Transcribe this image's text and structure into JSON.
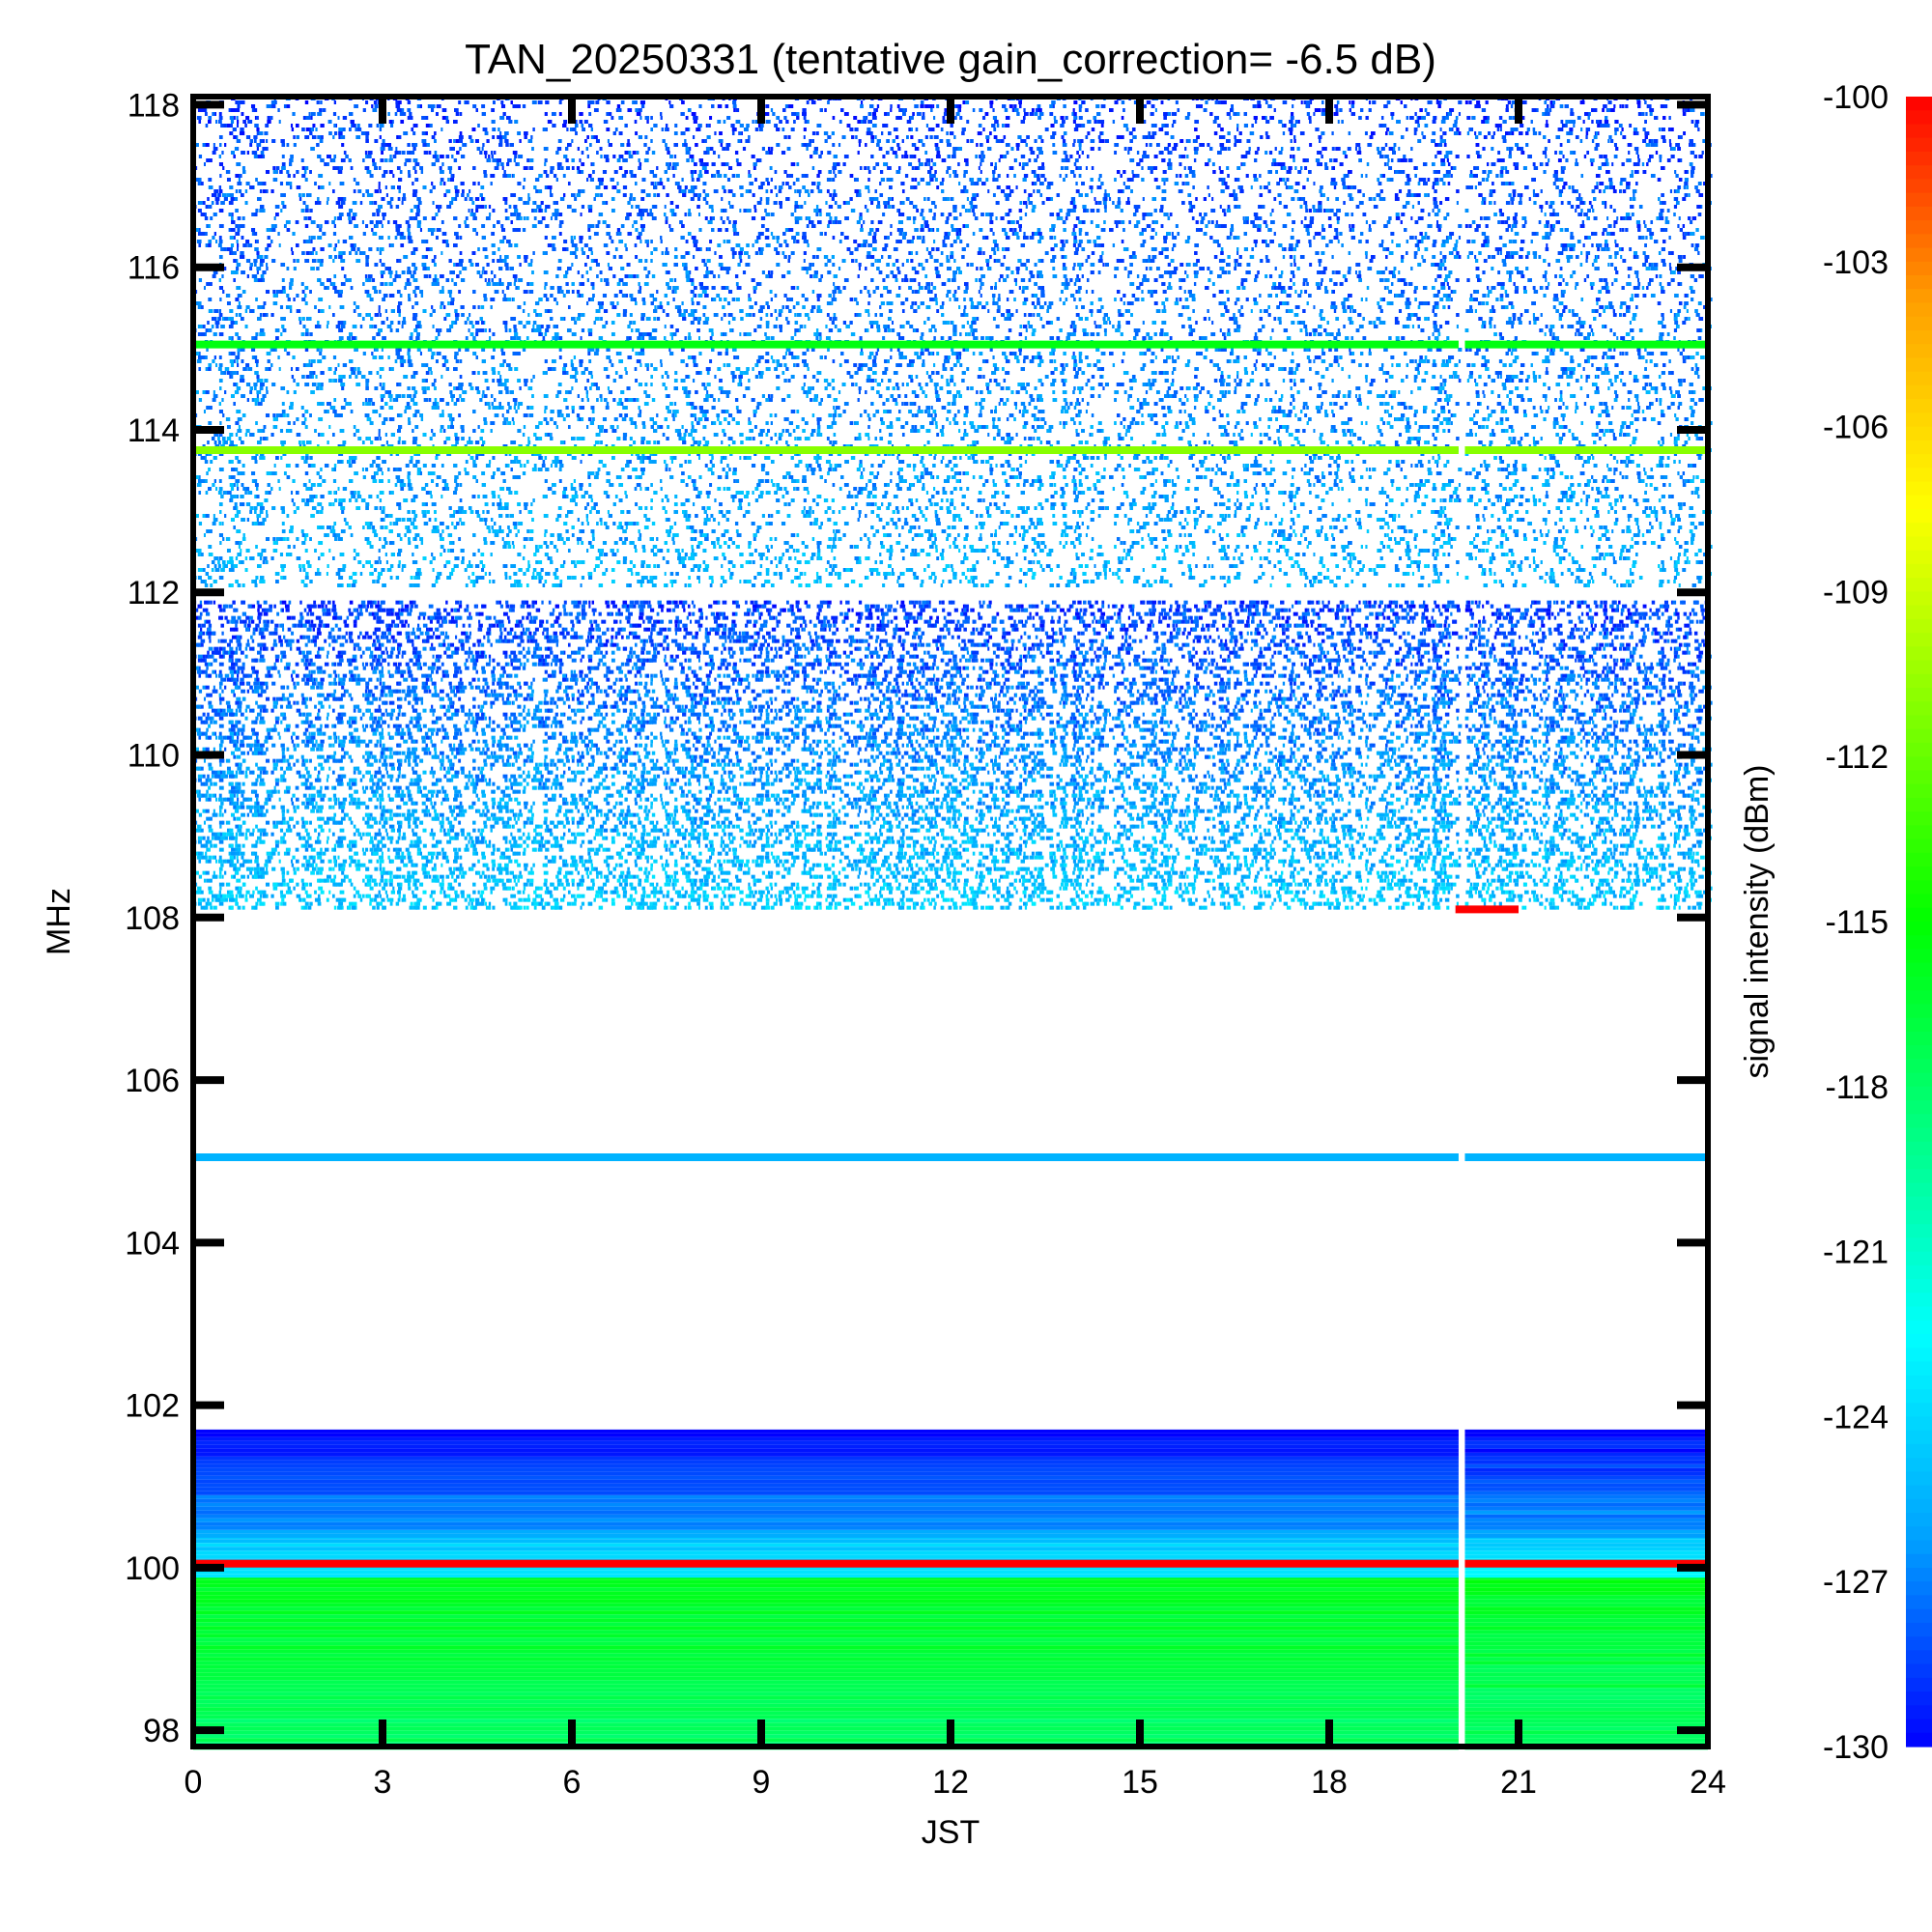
{
  "chart_data": {
    "type": "heatmap",
    "title": "TAN_20250331 (tentative gain_correction= -6.5 dB)",
    "xlabel": "JST",
    "ylabel": "MHz",
    "colorbar_label": "signal intensity (dBm)",
    "xlim": [
      0,
      24
    ],
    "ylim": [
      97.8,
      118.1
    ],
    "x_ticks": [
      0,
      3,
      6,
      9,
      12,
      15,
      18,
      21,
      24
    ],
    "y_ticks": [
      98,
      100,
      102,
      104,
      106,
      108,
      110,
      112,
      114,
      116,
      118
    ],
    "colorbar_range": [
      -130,
      -100
    ],
    "colorbar_ticks": [
      -100,
      -103,
      -106,
      -109,
      -112,
      -115,
      -118,
      -121,
      -124,
      -127,
      -130
    ],
    "colormap": [
      "#0000ff",
      "#00a0ff",
      "#00ffff",
      "#00ff80",
      "#00ff00",
      "#80ff00",
      "#ffff00",
      "#ffa000",
      "#ff0000"
    ],
    "data_gap_hours": [
      20.05,
      20.15
    ],
    "steady_signals": [
      {
        "freq_mhz": 115.05,
        "level_dbm": -115.5
      },
      {
        "freq_mhz": 113.75,
        "level_dbm": -111.0
      },
      {
        "freq_mhz": 105.05,
        "level_dbm": -125.5
      },
      {
        "freq_mhz": 100.05,
        "level_dbm": -100.0
      }
    ],
    "bands": [
      {
        "name": "noise-floor-low",
        "freq_mhz": [
          97.8,
          99.9
        ],
        "level_dbm": [
          -120,
          -116
        ]
      },
      {
        "name": "noise-floor-mid",
        "freq_mhz": [
          99.9,
          100.4
        ],
        "level_dbm": [
          -125,
          -123
        ]
      },
      {
        "name": "noise-floor-high",
        "freq_mhz": [
          100.4,
          101.7
        ],
        "level_dbm": [
          -130,
          -126
        ]
      },
      {
        "name": "dense-airband",
        "freq_mhz": [
          108.1,
          111.9
        ],
        "level_dbm": [
          -130,
          -126
        ]
      },
      {
        "name": "sparse-airband",
        "freq_mhz": [
          112.1,
          118.1
        ],
        "level_dbm": [
          -130,
          -127
        ]
      }
    ],
    "short_events": [
      {
        "time_jst": [
          20.0,
          21.0
        ],
        "freq_mhz": 108.1,
        "level_dbm": -100.0
      }
    ]
  }
}
